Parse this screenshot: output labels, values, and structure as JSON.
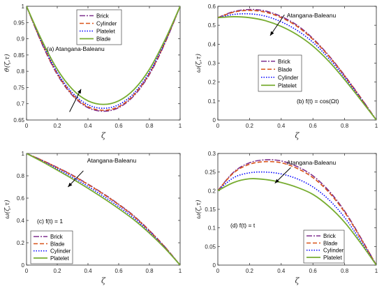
{
  "chart_data": [
    {
      "type": "line",
      "xlabel": "ζ",
      "ylabel": "ϑ(ζ,τ)",
      "xlim": [
        0,
        1
      ],
      "ylim": [
        0.65,
        1
      ],
      "xticks": [
        "0",
        "0.2",
        "0.4",
        "0.6",
        "0.8",
        "1"
      ],
      "yticks": [
        "0.65",
        "0.7",
        "0.75",
        "0.8",
        "0.85",
        "0.9",
        "0.95",
        "1"
      ],
      "ytick_values": [
        0.65,
        0.7,
        0.75,
        0.8,
        0.85,
        0.9,
        0.95,
        1
      ],
      "annotation": "(a) Atangana-Baleanu",
      "legend_position": "top-center",
      "x": [
        0,
        0.1,
        0.2,
        0.3,
        0.4,
        0.5,
        0.6,
        0.7,
        0.8,
        0.9,
        1
      ],
      "series": [
        {
          "name": "Brick",
          "color": "#7e2f8e",
          "dash": "8,2,2,2",
          "values": [
            1,
            0.885,
            0.79,
            0.725,
            0.688,
            0.677,
            0.688,
            0.725,
            0.79,
            0.885,
            1
          ]
        },
        {
          "name": "Cylinder",
          "color": "#d95319",
          "dash": "6,3",
          "values": [
            1,
            0.887,
            0.793,
            0.728,
            0.691,
            0.68,
            0.691,
            0.728,
            0.793,
            0.887,
            1
          ]
        },
        {
          "name": "Platelet",
          "color": "#0000ff",
          "dash": "1.5,2",
          "values": [
            1,
            0.89,
            0.797,
            0.733,
            0.697,
            0.686,
            0.697,
            0.733,
            0.797,
            0.89,
            1
          ]
        },
        {
          "name": "Blade",
          "color": "#77ac30",
          "dash": "",
          "values": [
            1,
            0.895,
            0.806,
            0.744,
            0.709,
            0.698,
            0.709,
            0.744,
            0.806,
            0.895,
            1
          ]
        }
      ],
      "arrow": {
        "from": [
          0.28,
          0.675
        ],
        "to": [
          0.355,
          0.745
        ]
      }
    },
    {
      "type": "line",
      "xlabel": "ζ",
      "ylabel": "ω(ζ,τ)",
      "xlim": [
        0,
        1
      ],
      "ylim": [
        0,
        0.6
      ],
      "xticks": [
        "0",
        "0.2",
        "0.4",
        "0.6",
        "0.8",
        "1"
      ],
      "yticks": [
        "0",
        "0.1",
        "0.2",
        "0.3",
        "0.4",
        "0.5",
        "0.6"
      ],
      "ytick_values": [
        0,
        0.1,
        0.2,
        0.3,
        0.4,
        0.5,
        0.6
      ],
      "title_annotation": "Atangana-Baleanu",
      "annotation": "(b) f(t) = cos(Ωt)",
      "legend_position": "middle-center",
      "x": [
        0,
        0.1,
        0.2,
        0.3,
        0.4,
        0.5,
        0.6,
        0.7,
        0.8,
        0.9,
        1
      ],
      "series": [
        {
          "name": "Brick",
          "color": "#7e2f8e",
          "dash": "8,2,2,2",
          "values": [
            0.54,
            0.572,
            0.583,
            0.575,
            0.546,
            0.5,
            0.43,
            0.34,
            0.235,
            0.12,
            0
          ]
        },
        {
          "name": "Blade",
          "color": "#d95319",
          "dash": "6,3",
          "values": [
            0.54,
            0.569,
            0.578,
            0.569,
            0.54,
            0.494,
            0.425,
            0.337,
            0.232,
            0.118,
            0
          ]
        },
        {
          "name": "Cylinder",
          "color": "#0000ff",
          "dash": "1.5,2",
          "values": [
            0.54,
            0.557,
            0.56,
            0.548,
            0.518,
            0.473,
            0.41,
            0.325,
            0.224,
            0.114,
            0
          ]
        },
        {
          "name": "Platelet",
          "color": "#77ac30",
          "dash": "",
          "values": [
            0.54,
            0.545,
            0.54,
            0.524,
            0.494,
            0.45,
            0.39,
            0.31,
            0.213,
            0.108,
            0
          ]
        }
      ],
      "arrow": {
        "from": [
          0.42,
          0.555
        ],
        "to": [
          0.33,
          0.445
        ]
      }
    },
    {
      "type": "line",
      "xlabel": "ζ",
      "ylabel": "ω(ζ,τ)",
      "xlim": [
        0,
        1
      ],
      "ylim": [
        0,
        1
      ],
      "xticks": [
        "0",
        "0.2",
        "0.4",
        "0.6",
        "0.8",
        "1"
      ],
      "yticks": [
        "0",
        "0.2",
        "0.4",
        "0.6",
        "0.8",
        "1"
      ],
      "ytick_values": [
        0,
        0.2,
        0.4,
        0.6,
        0.8,
        1
      ],
      "title_annotation": "Atangana-Baleanu",
      "annotation": "(c) f(t) = 1",
      "legend_position": "bottom-left",
      "x": [
        0,
        0.1,
        0.2,
        0.3,
        0.4,
        0.5,
        0.6,
        0.7,
        0.8,
        0.9,
        1
      ],
      "series": [
        {
          "name": "Brick",
          "color": "#7e2f8e",
          "dash": "8,2,2,2",
          "values": [
            1,
            0.94,
            0.875,
            0.805,
            0.725,
            0.64,
            0.545,
            0.44,
            0.31,
            0.165,
            0
          ]
        },
        {
          "name": "Blade",
          "color": "#d95319",
          "dash": "6,3",
          "values": [
            1,
            0.939,
            0.873,
            0.802,
            0.722,
            0.636,
            0.541,
            0.436,
            0.307,
            0.163,
            0
          ]
        },
        {
          "name": "Cylinder",
          "color": "#0000ff",
          "dash": "1.5,2",
          "values": [
            1,
            0.933,
            0.862,
            0.787,
            0.705,
            0.618,
            0.524,
            0.421,
            0.297,
            0.158,
            0
          ]
        },
        {
          "name": "Platelet",
          "color": "#77ac30",
          "dash": "",
          "values": [
            1,
            0.928,
            0.851,
            0.772,
            0.688,
            0.6,
            0.506,
            0.405,
            0.286,
            0.152,
            0
          ]
        }
      ],
      "arrow": {
        "from": [
          0.37,
          0.845
        ],
        "to": [
          0.27,
          0.7
        ]
      }
    },
    {
      "type": "line",
      "xlabel": "ζ",
      "ylabel": "ω(ζ,τ)",
      "xlim": [
        0,
        1
      ],
      "ylim": [
        0,
        0.3
      ],
      "xticks": [
        "0",
        "0.2",
        "0.4",
        "0.6",
        "0.8",
        "1"
      ],
      "yticks": [
        "0",
        "0.05",
        "0.1",
        "0.15",
        "0.2",
        "0.25",
        "0.3"
      ],
      "ytick_values": [
        0,
        0.05,
        0.1,
        0.15,
        0.2,
        0.25,
        0.3
      ],
      "title_annotation": "Atangana-Baleanu",
      "annotation": "(d) f(t) = t",
      "legend_position": "bottom-right",
      "x": [
        0,
        0.1,
        0.2,
        0.3,
        0.4,
        0.5,
        0.6,
        0.7,
        0.8,
        0.9,
        1
      ],
      "series": [
        {
          "name": "Brick",
          "color": "#7e2f8e",
          "dash": "8,2,2,2",
          "values": [
            0.2,
            0.25,
            0.275,
            0.283,
            0.28,
            0.265,
            0.24,
            0.2,
            0.145,
            0.075,
            0
          ]
        },
        {
          "name": "Blade",
          "color": "#d95319",
          "dash": "6,3",
          "values": [
            0.2,
            0.248,
            0.271,
            0.278,
            0.275,
            0.26,
            0.235,
            0.196,
            0.142,
            0.073,
            0
          ]
        },
        {
          "name": "Cylinder",
          "color": "#0000ff",
          "dash": "1.5,2",
          "values": [
            0.2,
            0.235,
            0.248,
            0.25,
            0.245,
            0.232,
            0.21,
            0.176,
            0.128,
            0.066,
            0
          ]
        },
        {
          "name": "Platelet",
          "color": "#77ac30",
          "dash": "",
          "values": [
            0.2,
            0.222,
            0.232,
            0.23,
            0.222,
            0.209,
            0.19,
            0.158,
            0.115,
            0.06,
            0
          ]
        }
      ],
      "arrow": {
        "from": [
          0.46,
          0.262
        ],
        "to": [
          0.36,
          0.22
        ]
      }
    }
  ]
}
